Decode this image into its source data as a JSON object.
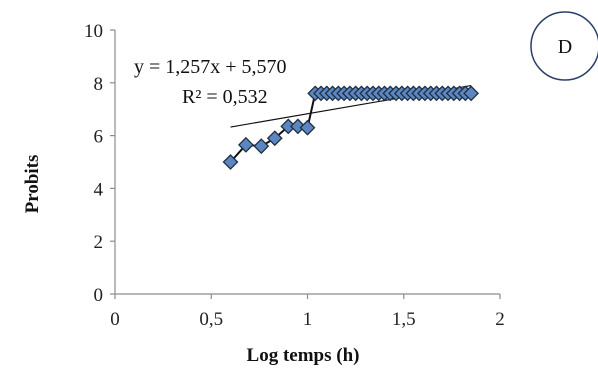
{
  "chart_data": {
    "type": "scatter",
    "xlabel": "Log temps (h)",
    "ylabel": "Probits",
    "xlim": [
      0,
      2
    ],
    "ylim": [
      0,
      10
    ],
    "x_ticks": [
      "0",
      "0,5",
      "1",
      "1,5",
      "2"
    ],
    "y_ticks": [
      "0",
      "2",
      "4",
      "6",
      "8",
      "10"
    ],
    "grid": false,
    "annotations": {
      "equation": "y = 1,257x + 5,570",
      "r_squared": "R² = 0,532"
    },
    "badge": "D",
    "marker_color": "#5b86c0",
    "marker_edge_color": "#1f2f44",
    "line_color": "#111111",
    "trendline": {
      "slope": 1.257,
      "intercept": 5.57,
      "x_range": [
        0.6,
        1.85
      ]
    },
    "series": [
      {
        "x": [
          0.6,
          0.68,
          0.76,
          0.83,
          0.9,
          0.95,
          1.0,
          1.04,
          1.07,
          1.1,
          1.13,
          1.16,
          1.19,
          1.22,
          1.25,
          1.28,
          1.31,
          1.34,
          1.37,
          1.4,
          1.43,
          1.46,
          1.49,
          1.52,
          1.55,
          1.58,
          1.61,
          1.64,
          1.67,
          1.7,
          1.73,
          1.76,
          1.79,
          1.82,
          1.85
        ],
        "y": [
          5.0,
          5.65,
          5.6,
          5.9,
          6.35,
          6.35,
          6.3,
          7.6,
          7.6,
          7.6,
          7.6,
          7.6,
          7.6,
          7.6,
          7.6,
          7.6,
          7.6,
          7.6,
          7.6,
          7.6,
          7.6,
          7.6,
          7.6,
          7.6,
          7.6,
          7.6,
          7.6,
          7.6,
          7.6,
          7.6,
          7.6,
          7.6,
          7.6,
          7.6,
          7.6
        ]
      }
    ]
  }
}
